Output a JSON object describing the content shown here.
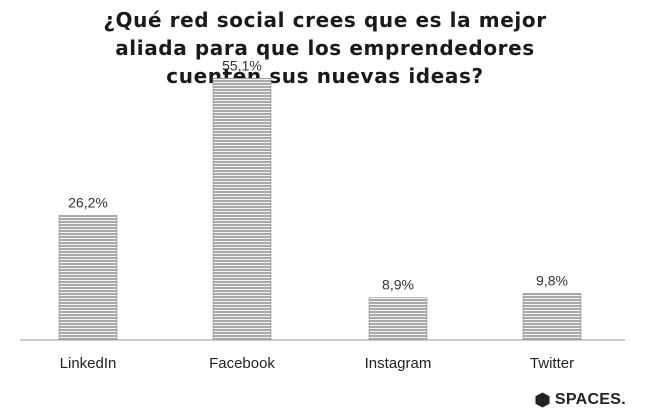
{
  "title_lines": [
    "¿Qué red social crees que es la mejor",
    "aliada para que los emprendedores",
    "cuenten sus nuevas ideas?"
  ],
  "brand": {
    "name": "SPACES.",
    "icon": "hexagon-logo-icon"
  },
  "colors": {
    "bar": "#a9a9a9",
    "stripe": "#f2f2f2",
    "axis": "#9a9a9a"
  },
  "chart_data": {
    "type": "bar",
    "title": "¿Qué red social crees que es la mejor aliada para que los emprendedores cuenten sus nuevas ideas?",
    "categories": [
      "LinkedIn",
      "Facebook",
      "Instagram",
      "Twitter"
    ],
    "values": [
      26.2,
      55.1,
      8.9,
      9.8
    ],
    "data_labels": [
      "26,2%",
      "55,1%",
      "8,9%",
      "9,8%"
    ],
    "unit": "%",
    "xlabel": "",
    "ylabel": "",
    "ylim": [
      0,
      60
    ],
    "grid": false,
    "legend": "none"
  }
}
